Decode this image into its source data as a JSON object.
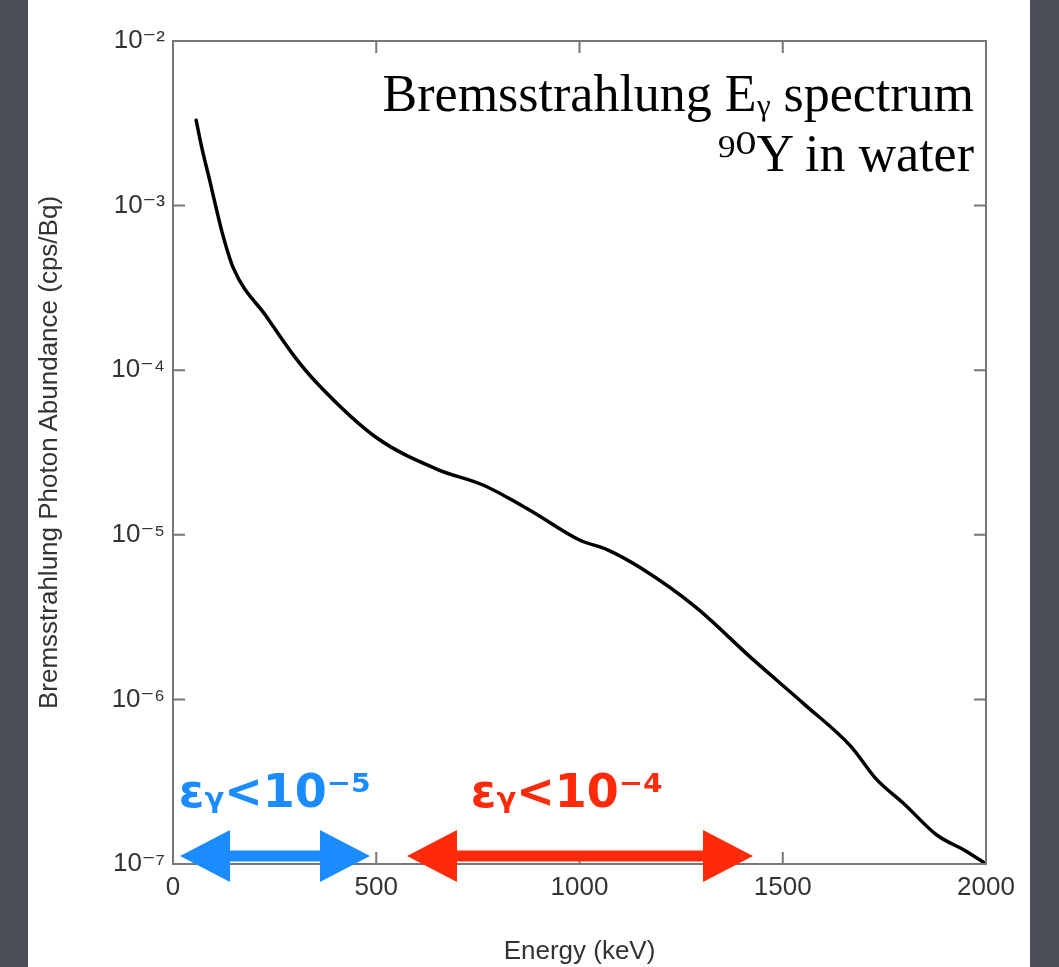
{
  "chart_data": {
    "type": "line",
    "xlabel": "Energy (keV)",
    "ylabel": "Bremsstrahlung Photon Abundance (cps/Bq)",
    "annotations": [
      "Bremsstrahlung Eᵧ spectrum",
      "⁹⁰Y in water",
      "εᵧ<10⁻⁵",
      "εᵧ<10⁻⁴"
    ],
    "x": [
      57,
      70,
      91,
      120,
      148,
      231,
      300,
      355,
      500,
      650,
      764,
      880,
      1000,
      1069,
      1150,
      1288,
      1421,
      1554,
      1667,
      1729,
      1800,
      1879,
      1950,
      2000
    ],
    "series": [
      {
        "color": "#000000",
        "values": [
          0.0033,
          0.0023,
          0.0014,
          0.0007,
          0.00042,
          0.00021,
          0.00012,
          8.3e-05,
          3.9e-05,
          2.5e-05,
          2e-05,
          1.4e-05,
          9.3e-06,
          8.1e-06,
          6.3e-06,
          3.6e-06,
          1.8e-06,
          9.3e-07,
          5.2e-07,
          3.3e-07,
          2.3e-07,
          1.5e-07,
          1.2e-07,
          1e-07
        ]
      }
    ],
    "log": "y",
    "xlim": [
      0,
      2000
    ],
    "xticks": [
      0,
      500,
      1000,
      1500,
      2000
    ],
    "ylim": [
      1e-07,
      0.01
    ],
    "yticks": [
      {
        "value": 1e-07,
        "label": "10⁻⁷"
      },
      {
        "value": 1e-06,
        "label": "10⁻⁶"
      },
      {
        "value": 1e-05,
        "label": "10⁻⁵"
      },
      {
        "value": 0.0001,
        "label": "10⁻⁴"
      },
      {
        "value": 0.001,
        "label": "10⁻³"
      },
      {
        "value": 0.01,
        "label": "10⁻²"
      }
    ]
  }
}
